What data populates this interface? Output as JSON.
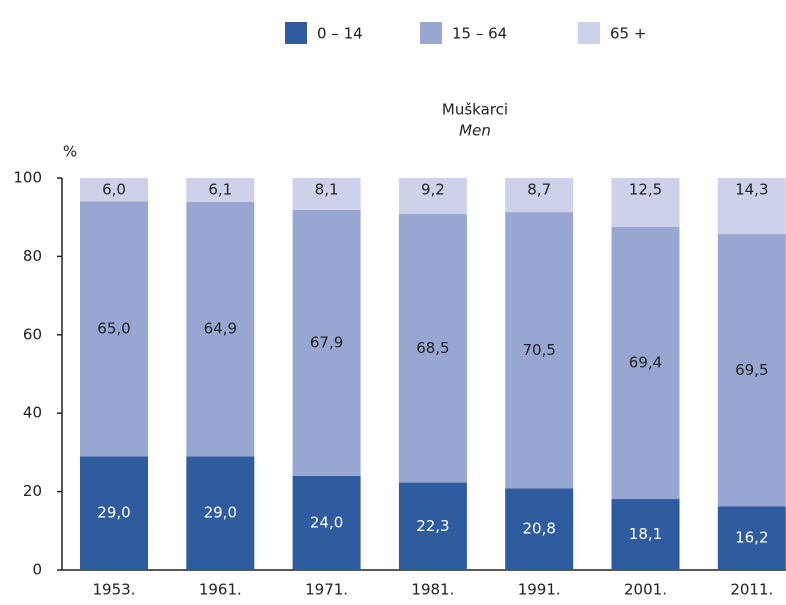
{
  "chart_data": {
    "type": "stacked_bar",
    "title": "Muškarci",
    "subtitle": "Men",
    "y_label": "%",
    "categories": [
      "1953.",
      "1961.",
      "1971.",
      "1981.",
      "1991.",
      "2001.",
      "2011."
    ],
    "series": [
      {
        "name": "0 – 14",
        "color": "#2e5c9e",
        "values": [
          29.0,
          29.0,
          24.0,
          22.3,
          20.8,
          18.1,
          16.2
        ],
        "value_labels": [
          "29,0",
          "29,0",
          "24,0",
          "22,3",
          "20,8",
          "18,1",
          "16,2"
        ]
      },
      {
        "name": "15 – 64",
        "color": "#98a7d1",
        "values": [
          65.0,
          64.9,
          67.9,
          68.5,
          70.5,
          69.4,
          69.5
        ],
        "value_labels": [
          "65,0",
          "64,9",
          "67,9",
          "68,5",
          "70,5",
          "69,4",
          "69,5"
        ]
      },
      {
        "name": "65 +",
        "color": "#cdd2ea",
        "values": [
          6.0,
          6.1,
          8.1,
          9.2,
          8.7,
          12.5,
          14.3
        ],
        "value_labels": [
          "6,0",
          "6,1",
          "8,1",
          "9,2",
          "8,7",
          "12,5",
          "14,3"
        ]
      }
    ],
    "ylim": [
      0,
      100
    ],
    "yticks": [
      0,
      20,
      40,
      60,
      80,
      100
    ]
  }
}
